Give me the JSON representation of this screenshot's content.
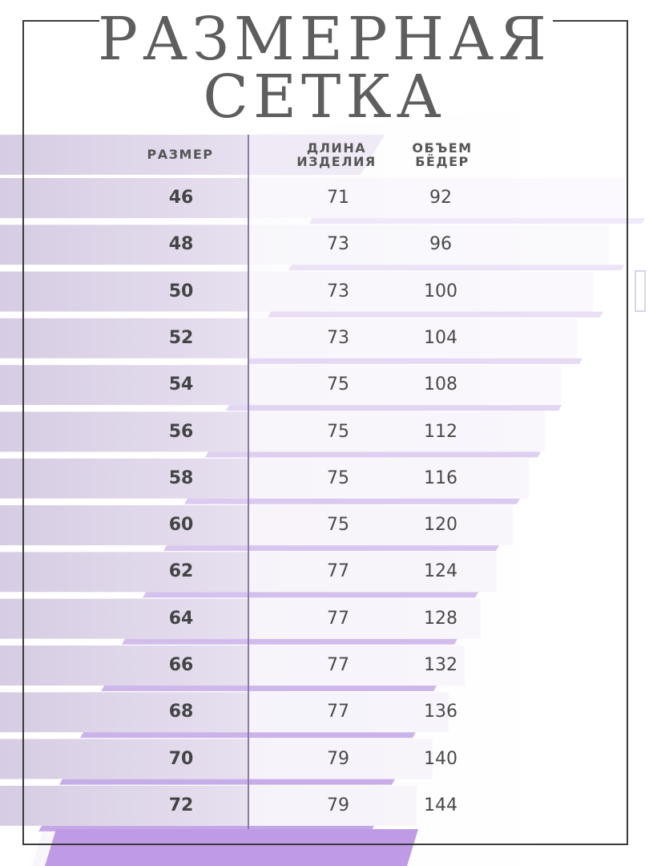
{
  "title": {
    "line1": "РАЗМЕРНАЯ",
    "line2": "СЕТКА"
  },
  "table": {
    "headers": {
      "size": "РАЗМЕР",
      "length_line1": "ДЛИНА",
      "length_line2": "ИЗДЕЛИЯ",
      "hips_line1": "ОБЪЕМ",
      "hips_line2": "БЁДЕР"
    },
    "rows": [
      {
        "size": "46",
        "length": "71",
        "hips": "92"
      },
      {
        "size": "48",
        "length": "73",
        "hips": "96"
      },
      {
        "size": "50",
        "length": "73",
        "hips": "100"
      },
      {
        "size": "52",
        "length": "73",
        "hips": "104"
      },
      {
        "size": "54",
        "length": "75",
        "hips": "108"
      },
      {
        "size": "56",
        "length": "75",
        "hips": "112"
      },
      {
        "size": "58",
        "length": "75",
        "hips": "116"
      },
      {
        "size": "60",
        "length": "75",
        "hips": "120"
      },
      {
        "size": "62",
        "length": "77",
        "hips": "124"
      },
      {
        "size": "64",
        "length": "77",
        "hips": "128"
      },
      {
        "size": "66",
        "length": "77",
        "hips": "132"
      },
      {
        "size": "68",
        "length": "77",
        "hips": "136"
      },
      {
        "size": "70",
        "length": "79",
        "hips": "140"
      },
      {
        "size": "72",
        "length": "79",
        "hips": "144"
      }
    ]
  },
  "colors": {
    "lavender_light": "#ece6f3",
    "lavender_mid": "#d9cfe6",
    "lavender_accent": "#c4a8e6",
    "lavender_deep": "#b894e0",
    "frame": "#3a3a3a",
    "title_text": "#5e5e5e"
  }
}
